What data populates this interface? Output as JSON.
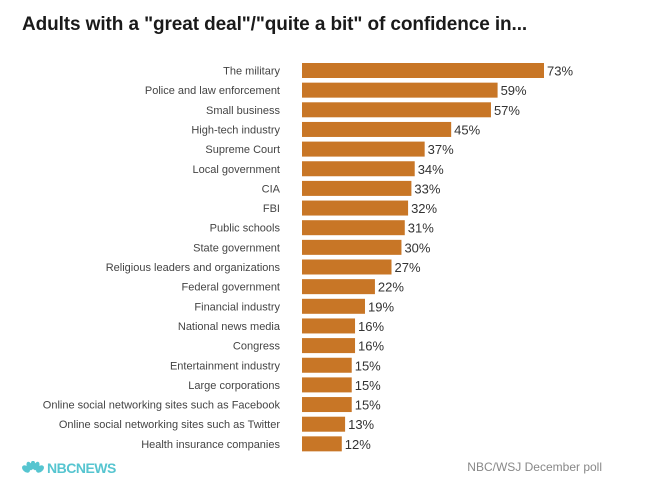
{
  "chart_data": {
    "type": "bar",
    "orientation": "horizontal",
    "title": "Adults with a \"great deal\"/\"quite a bit\" of confidence in...",
    "categories": [
      "The military",
      "Police and law enforcement",
      "Small business",
      "High-tech industry",
      "Supreme Court",
      "Local government",
      "CIA",
      "FBI",
      "Public schools",
      "State government",
      "Religious leaders and organizations",
      "Federal government",
      "Financial industry",
      "National news media",
      "Congress",
      "Entertainment industry",
      "Large corporations",
      "Online social networking sites such as Facebook",
      "Online social networking sites such as Twitter",
      "Health insurance companies"
    ],
    "values": [
      73,
      59,
      57,
      45,
      37,
      34,
      33,
      32,
      31,
      30,
      27,
      22,
      19,
      16,
      16,
      15,
      15,
      15,
      13,
      12
    ],
    "value_labels": [
      "73%",
      "59%",
      "57%",
      "45%",
      "37%",
      "34%",
      "33%",
      "32%",
      "31%",
      "30%",
      "27%",
      "22%",
      "19%",
      "16%",
      "16%",
      "15%",
      "15%",
      "15%",
      "13%",
      "12%"
    ],
    "unit": "%",
    "xlim": [
      0,
      73
    ],
    "xlabel": "",
    "ylabel": "",
    "grid": false,
    "bar_color": "#c87626"
  },
  "footer": {
    "brand": "NBCNEWS",
    "brand_color": "#56c5d0",
    "source": "NBC/WSJ December poll"
  }
}
